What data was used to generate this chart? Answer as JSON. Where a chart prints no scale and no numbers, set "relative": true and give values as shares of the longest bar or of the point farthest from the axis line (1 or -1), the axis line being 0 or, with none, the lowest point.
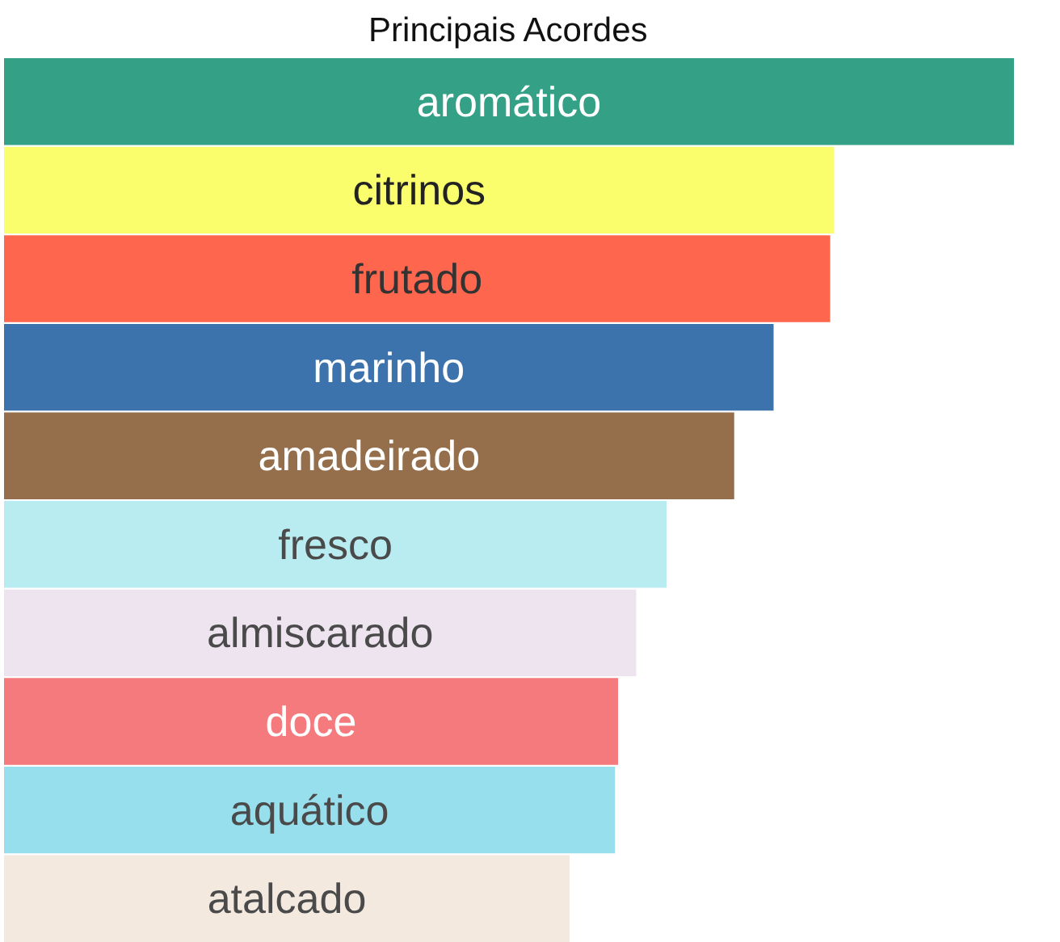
{
  "chart_data": {
    "type": "bar",
    "orientation": "horizontal",
    "relative": true,
    "title": "Principais Acordes",
    "categories": [
      "aromático",
      "citrinos",
      "frutado",
      "marinho",
      "amadeirado",
      "fresco",
      "almiscarado",
      "doce",
      "aquático",
      "atalcado"
    ],
    "values": [
      1,
      0.822,
      0.818,
      0.762,
      0.723,
      0.656,
      0.626,
      0.608,
      0.605,
      0.56
    ],
    "colors": [
      "#34a187",
      "#fafd6c",
      "#fe674d",
      "#3c73ad",
      "#956e4b",
      "#b8ecf0",
      "#ede4ef",
      "#f47a7e",
      "#97dfec",
      "#f3e9df"
    ],
    "grid": false
  }
}
